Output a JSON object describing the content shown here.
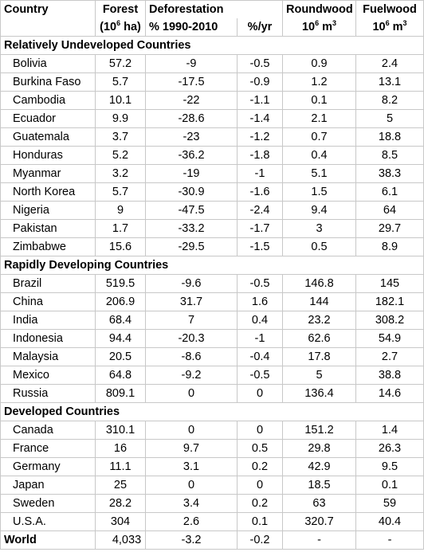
{
  "headers": {
    "country": "Country",
    "forest": "Forest",
    "deforestation": "Deforestation",
    "roundwood": "Roundwood",
    "fuelwood": "Fuelwood",
    "forest_unit_pre": "(10",
    "forest_unit_exp": "6",
    "forest_unit_post": " ha)",
    "defor_pct_label": "% 1990-2010",
    "defor_yr_label": "%/yr",
    "round_unit_pre": "10",
    "round_unit_exp": "6",
    "round_unit_mid": " m",
    "round_unit_exp2": "3",
    "fuel_unit_pre": "10",
    "fuel_unit_exp": "6",
    "fuel_unit_mid": " m",
    "fuel_unit_exp2": "3"
  },
  "groups": [
    {
      "title": "Relatively Undeveloped Countries",
      "rows": [
        {
          "country": "Bolivia",
          "forest": "57.2",
          "pct": "-9",
          "yr": "-0.5",
          "round": "0.9",
          "fuel": "2.4"
        },
        {
          "country": "Burkina Faso",
          "forest": "5.7",
          "pct": "-17.5",
          "yr": "-0.9",
          "round": "1.2",
          "fuel": "13.1"
        },
        {
          "country": "Cambodia",
          "forest": "10.1",
          "pct": "-22",
          "yr": "-1.1",
          "round": "0.1",
          "fuel": "8.2"
        },
        {
          "country": "Ecuador",
          "forest": "9.9",
          "pct": "-28.6",
          "yr": "-1.4",
          "round": "2.1",
          "fuel": "5"
        },
        {
          "country": "Guatemala",
          "forest": "3.7",
          "pct": "-23",
          "yr": "-1.2",
          "round": "0.7",
          "fuel": "18.8"
        },
        {
          "country": "Honduras",
          "forest": "5.2",
          "pct": "-36.2",
          "yr": "-1.8",
          "round": "0.4",
          "fuel": "8.5"
        },
        {
          "country": "Myanmar",
          "forest": "3.2",
          "pct": "-19",
          "yr": "-1",
          "round": "5.1",
          "fuel": "38.3"
        },
        {
          "country": "North Korea",
          "forest": "5.7",
          "pct": "-30.9",
          "yr": "-1.6",
          "round": "1.5",
          "fuel": "6.1"
        },
        {
          "country": "Nigeria",
          "forest": "9",
          "pct": "-47.5",
          "yr": "-2.4",
          "round": "9.4",
          "fuel": "64"
        },
        {
          "country": "Pakistan",
          "forest": "1.7",
          "pct": "-33.2",
          "yr": "-1.7",
          "round": "3",
          "fuel": "29.7"
        },
        {
          "country": "Zimbabwe",
          "forest": "15.6",
          "pct": "-29.5",
          "yr": "-1.5",
          "round": "0.5",
          "fuel": "8.9"
        }
      ]
    },
    {
      "title": "Rapidly Developing Countries",
      "rows": [
        {
          "country": "Brazil",
          "forest": "519.5",
          "pct": "-9.6",
          "yr": "-0.5",
          "round": "146.8",
          "fuel": "145"
        },
        {
          "country": "China",
          "forest": "206.9",
          "pct": "31.7",
          "yr": "1.6",
          "round": "144",
          "fuel": "182.1"
        },
        {
          "country": "India",
          "forest": "68.4",
          "pct": "7",
          "yr": "0.4",
          "round": "23.2",
          "fuel": "308.2"
        },
        {
          "country": "Indonesia",
          "forest": "94.4",
          "pct": "-20.3",
          "yr": "-1",
          "round": "62.6",
          "fuel": "54.9"
        },
        {
          "country": "Malaysia",
          "forest": "20.5",
          "pct": "-8.6",
          "yr": "-0.4",
          "round": "17.8",
          "fuel": "2.7"
        },
        {
          "country": "Mexico",
          "forest": "64.8",
          "pct": "-9.2",
          "yr": "-0.5",
          "round": "5",
          "fuel": "38.8"
        },
        {
          "country": "Russia",
          "forest": "809.1",
          "pct": "0",
          "yr": "0",
          "round": "136.4",
          "fuel": "14.6"
        }
      ]
    },
    {
      "title": "Developed Countries",
      "rows": [
        {
          "country": "Canada",
          "forest": "310.1",
          "pct": "0",
          "yr": "0",
          "round": "151.2",
          "fuel": "1.4"
        },
        {
          "country": "France",
          "forest": "16",
          "pct": "9.7",
          "yr": "0.5",
          "round": "29.8",
          "fuel": "26.3"
        },
        {
          "country": "Germany",
          "forest": "11.1",
          "pct": "3.1",
          "yr": "0.2",
          "round": "42.9",
          "fuel": "9.5"
        },
        {
          "country": "Japan",
          "forest": "25",
          "pct": "0",
          "yr": "0",
          "round": "18.5",
          "fuel": "0.1"
        },
        {
          "country": "Sweden",
          "forest": "28.2",
          "pct": "3.4",
          "yr": "0.2",
          "round": "63",
          "fuel": "59"
        },
        {
          "country": "U.S.A.",
          "forest": "304",
          "pct": "2.6",
          "yr": "0.1",
          "round": "320.7",
          "fuel": "40.4"
        }
      ]
    }
  ],
  "world": {
    "country": "World",
    "forest": "4,033",
    "pct": "-3.2",
    "yr": "-0.2",
    "round": "-",
    "fuel": "-"
  }
}
